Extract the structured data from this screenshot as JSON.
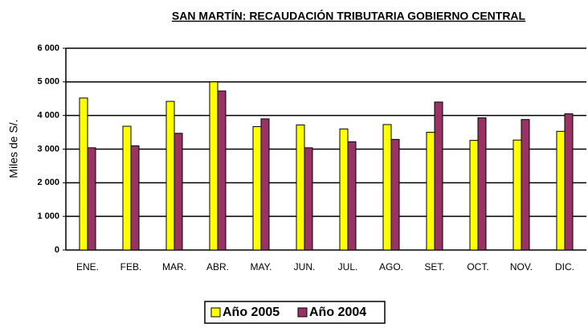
{
  "chart_data": {
    "type": "bar",
    "title": "SAN MARTÍN: RECAUDACIÓN TRIBUTARIA GOBIERNO CENTRAL",
    "y_label": "Miles de S/.",
    "categories": [
      "ENE.",
      "FEB.",
      "MAR.",
      "ABR.",
      "MAY.",
      "JUN.",
      "JUL.",
      "AGO.",
      "SET.",
      "OCT.",
      "NOV.",
      "DIC."
    ],
    "series": [
      {
        "name": "Año 2005",
        "color": "#ffff00",
        "values": [
          4520,
          3680,
          4420,
          5000,
          3670,
          3720,
          3600,
          3730,
          3500,
          3260,
          3270,
          3530
        ]
      },
      {
        "name": "Año 2004",
        "color": "#993366",
        "values": [
          3040,
          3100,
          3470,
          4730,
          3900,
          3040,
          3220,
          3290,
          4400,
          3930,
          3880,
          4050
        ]
      }
    ],
    "ylim": [
      0,
      6000
    ],
    "yticks": [
      0,
      {
        "value": 1000,
        "label": "1 000"
      },
      {
        "value": 2000,
        "label": "2 000"
      },
      {
        "value": 3000,
        "label": "3 000"
      },
      {
        "value": 4000,
        "label": "4 000"
      },
      {
        "value": 5000,
        "label": "5 000"
      },
      {
        "value": 6000,
        "label": "6 000"
      }
    ],
    "grid": true,
    "legend": "bottom"
  }
}
